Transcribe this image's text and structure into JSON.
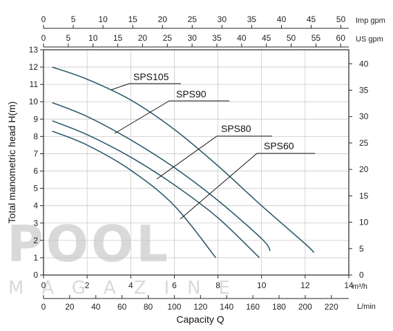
{
  "chart_data": {
    "type": "line",
    "xlabel": "Capacity Q",
    "ylabel": "Total manometric head H(m)",
    "x_unit": "m³/h",
    "xlim": [
      0,
      14
    ],
    "ylim": [
      0,
      13
    ],
    "x_ticks": [
      0,
      2,
      4,
      6,
      8,
      10,
      12,
      14
    ],
    "y_ticks": [
      0,
      1,
      2,
      3,
      4,
      5,
      6,
      7,
      8,
      9,
      10,
      11,
      12,
      13
    ],
    "grid": true,
    "secondary_axes": {
      "lmin": {
        "label": "L/min",
        "ticks": [
          0,
          20,
          40,
          60,
          80,
          100,
          120,
          140,
          160,
          180,
          200,
          220
        ]
      },
      "us_gpm": {
        "label": "US gpm",
        "ticks": [
          0,
          5,
          10,
          15,
          20,
          25,
          30,
          35,
          40,
          45,
          50,
          55,
          60
        ]
      },
      "imp_gpm": {
        "label": "Imp gpm",
        "ticks": [
          0,
          5,
          10,
          15,
          20,
          25,
          30,
          35,
          40,
          45,
          50
        ]
      },
      "feet": {
        "label": "",
        "ticks": [
          0,
          5,
          10,
          15,
          20,
          25,
          30,
          35,
          40
        ]
      }
    },
    "series": [
      {
        "name": "SPS105",
        "x": [
          0.4,
          2,
          4,
          6,
          8,
          10,
          12,
          12.4
        ],
        "y": [
          12.0,
          11.3,
          10.1,
          8.4,
          6.3,
          4.0,
          1.8,
          1.3
        ]
      },
      {
        "name": "SPS90",
        "x": [
          0.4,
          2,
          4,
          6,
          8,
          10,
          10.4
        ],
        "y": [
          9.95,
          9.15,
          7.8,
          6.2,
          4.3,
          2.1,
          1.4
        ]
      },
      {
        "name": "SPS80",
        "x": [
          0.4,
          2,
          4,
          6,
          8,
          9.9
        ],
        "y": [
          8.9,
          8.1,
          6.8,
          5.2,
          3.3,
          1.0
        ]
      },
      {
        "name": "SPS60",
        "x": [
          0.4,
          2,
          4,
          6,
          7.9
        ],
        "y": [
          8.3,
          7.5,
          6.05,
          4.0,
          1.0
        ]
      }
    ],
    "annotations": [
      "SPS105",
      "SPS90",
      "SPS80",
      "SPS60"
    ]
  },
  "watermark": {
    "line1": "POOL",
    "line2": "MAGAZINE"
  }
}
